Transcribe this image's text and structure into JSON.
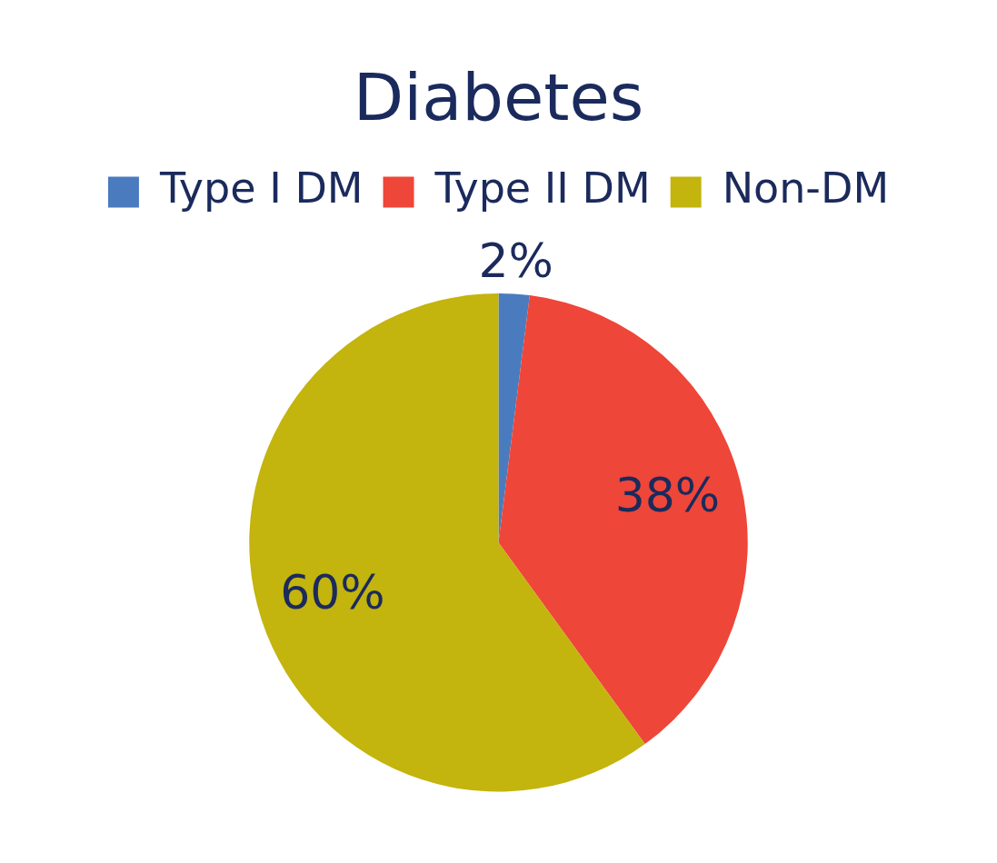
{
  "chart_data": {
    "type": "pie",
    "title": "Diabetes",
    "categories": [
      "Type I DM",
      "Type II DM",
      "Non-DM"
    ],
    "values": [
      2,
      38,
      60
    ],
    "colors": [
      "#4a7bbf",
      "#ee4638",
      "#c3b40e"
    ],
    "value_labels": [
      "2%",
      "38%",
      "60%"
    ],
    "legend": "top"
  }
}
